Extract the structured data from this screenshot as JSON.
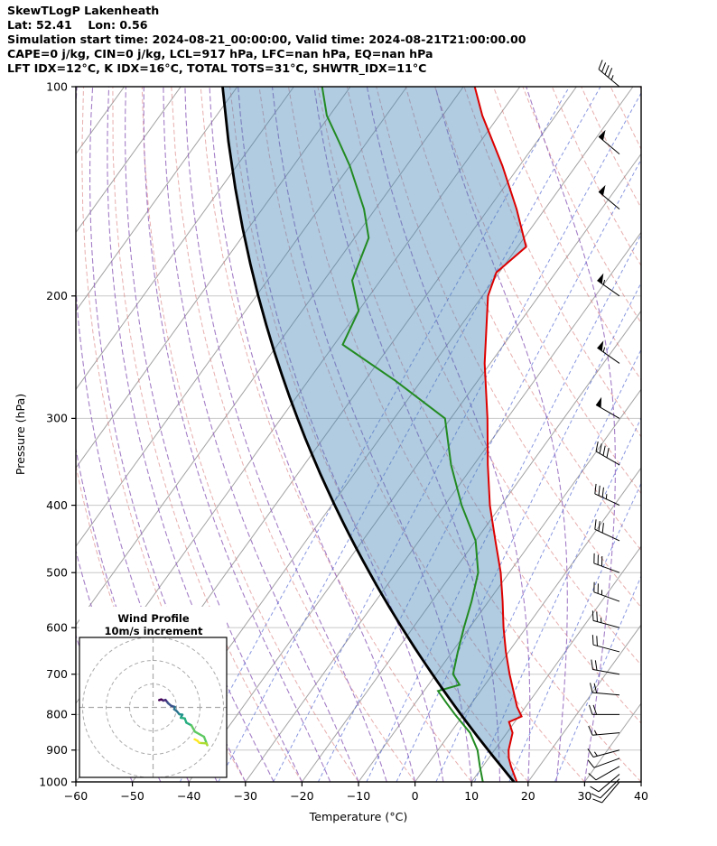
{
  "header": {
    "line1": "SkewTLogP Lakenheath",
    "line2": "Lat: 52.41    Lon: 0.56",
    "line3": "Simulation start time: 2024-08-21_00:00:00, Valid time: 2024-08-21T21:00:00.00",
    "line4": "CAPE=0 j/kg, CIN=0 j/kg, LCL=917 hPa, LFC=nan hPa, EQ=nan hPa",
    "line5": "LFT IDX=12°C, K IDX=16°C, TOTAL TOTS=31°C, SHWTR_IDX=11°C"
  },
  "chart_data": {
    "type": "line",
    "subtype": "skewT-logP",
    "title": "SkewTLogP Lakenheath",
    "station": "Lakenheath",
    "x_axis_label": "Temperature (°C)",
    "y_axis_label": "Pressure (hPa)",
    "x_ticks": [
      -60,
      -50,
      -40,
      -30,
      -20,
      -10,
      0,
      10,
      20,
      30,
      40
    ],
    "y_ticks": [
      100,
      200,
      300,
      400,
      500,
      600,
      700,
      800,
      900,
      1000
    ],
    "xlim": [
      -60,
      40
    ],
    "pressure_range_hpa": [
      1000,
      100
    ],
    "series": [
      {
        "name": "temperature",
        "color": "#dd0000",
        "points_p_hpa_t_c": [
          [
            1000,
            18
          ],
          [
            950,
            15
          ],
          [
            925,
            13.6
          ],
          [
            900,
            12.5
          ],
          [
            850,
            11
          ],
          [
            820,
            9
          ],
          [
            805,
            10.5
          ],
          [
            780,
            8.5
          ],
          [
            750,
            6.5
          ],
          [
            700,
            3
          ],
          [
            650,
            -0.5
          ],
          [
            600,
            -4
          ],
          [
            550,
            -7.5
          ],
          [
            500,
            -11.5
          ],
          [
            450,
            -16.5
          ],
          [
            400,
            -22
          ],
          [
            350,
            -27.5
          ],
          [
            300,
            -33.5
          ],
          [
            250,
            -41
          ],
          [
            200,
            -49
          ],
          [
            185,
            -50.5
          ],
          [
            170,
            -48.5
          ],
          [
            150,
            -55
          ],
          [
            130,
            -63
          ],
          [
            110,
            -73
          ],
          [
            100,
            -78
          ]
        ]
      },
      {
        "name": "dewpoint",
        "color": "#228b22",
        "points_p_hpa_t_c": [
          [
            1000,
            12
          ],
          [
            950,
            9.5
          ],
          [
            900,
            7
          ],
          [
            850,
            3.5
          ],
          [
            800,
            -1.5
          ],
          [
            770,
            -4.5
          ],
          [
            740,
            -7.5
          ],
          [
            725,
            -4.5
          ],
          [
            700,
            -7
          ],
          [
            650,
            -9
          ],
          [
            600,
            -11
          ],
          [
            550,
            -13
          ],
          [
            500,
            -15.5
          ],
          [
            450,
            -20
          ],
          [
            400,
            -27
          ],
          [
            350,
            -34
          ],
          [
            300,
            -41
          ],
          [
            265,
            -54.5
          ],
          [
            235,
            -68.5
          ],
          [
            210,
            -70
          ],
          [
            190,
            -75
          ],
          [
            165,
            -77.5
          ],
          [
            150,
            -82
          ],
          [
            130,
            -90
          ],
          [
            120,
            -95
          ],
          [
            110,
            -100.5
          ],
          [
            100,
            -105
          ]
        ]
      },
      {
        "name": "parcel",
        "color": "#000000",
        "theta_c": 17.5
      }
    ],
    "shading": {
      "between": "parcel and temperature",
      "color": "#4682b4",
      "opacity": 0.42
    },
    "background_lines": {
      "isotherms_c": {
        "min": -140,
        "max": 40,
        "step": 10
      },
      "isobars_hpa": [
        100,
        200,
        300,
        400,
        500,
        600,
        700,
        800,
        900,
        1000
      ],
      "dry_adiabats_theta_c": {
        "min": -40,
        "max": 160,
        "step": 10
      },
      "moist_adiabats_thetaw_c": {
        "min": -50,
        "max": 30,
        "step": 5
      },
      "mixing_ratio_g_kg": [
        0.1,
        0.2,
        0.5,
        1,
        2,
        3,
        5,
        8,
        12,
        20
      ]
    },
    "wind_barbs": {
      "units": "kt",
      "levels_p_spd_dirfrom": [
        [
          1000,
          8,
          220
        ],
        [
          990,
          8,
          225
        ],
        [
          975,
          10,
          230
        ],
        [
          950,
          12,
          240
        ],
        [
          925,
          12,
          250
        ],
        [
          900,
          13,
          255
        ],
        [
          850,
          15,
          265
        ],
        [
          800,
          18,
          270
        ],
        [
          750,
          18,
          275
        ],
        [
          700,
          20,
          280
        ],
        [
          650,
          22,
          285
        ],
        [
          600,
          25,
          285
        ],
        [
          550,
          25,
          290
        ],
        [
          500,
          28,
          290
        ],
        [
          450,
          30,
          295
        ],
        [
          400,
          35,
          295
        ],
        [
          350,
          40,
          300
        ],
        [
          300,
          50,
          300
        ],
        [
          250,
          55,
          305
        ],
        [
          200,
          55,
          305
        ],
        [
          150,
          50,
          310
        ],
        [
          125,
          50,
          310
        ],
        [
          100,
          45,
          310
        ]
      ]
    },
    "hodograph": {
      "title_line1": "Wind Profile",
      "title_line2": "10m/s increment",
      "ring_interval_ms": 10,
      "u_ms": [
        2.6,
        3.5,
        4.4,
        5.3,
        6.1,
        6.5,
        7.7,
        9.3,
        9.0,
        10.1,
        11.2,
        12.5,
        11.8,
        13.5,
        14.2,
        16.3,
        17.8,
        21.7,
        23.1,
        22.6,
        19.7,
        18.9,
        17.7
      ],
      "v_ms": [
        3.1,
        3.4,
        2.9,
        3.2,
        2.2,
        1.7,
        0.7,
        0.2,
        -0.8,
        -1.6,
        -2.9,
        -3.1,
        -4.4,
        -4.7,
        -6.5,
        -7.6,
        -10.3,
        -12.5,
        -16.1,
        -15.3,
        -15.1,
        -14.2,
        -13.6
      ]
    },
    "colors": {
      "frame": "#000000",
      "isobar": "#c8c8c8",
      "isotherm": "#999999",
      "dry_adiabat": "#d87878",
      "moist_adiabat": "#9467bd",
      "mixing_ratio": "#4a5fd0",
      "temperature": "#dd0000",
      "dewpoint": "#228b22",
      "parcel": "#000000",
      "shading": "#4682b4",
      "barb": "#000000",
      "hodo_grid": "#aaaaaa"
    }
  }
}
